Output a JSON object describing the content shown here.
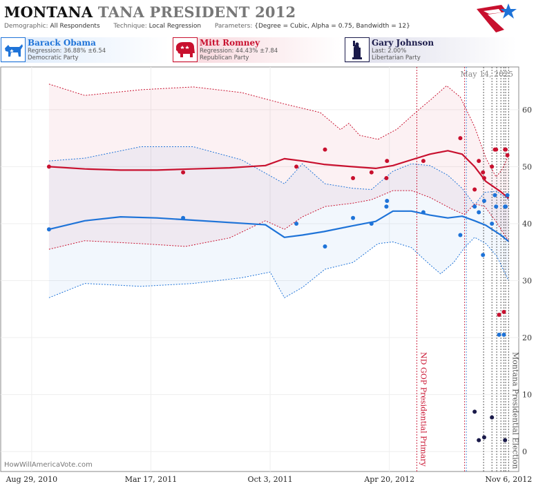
{
  "header": {
    "state": "MONTANA",
    "subtitle": "TANA PRESIDENT 2012",
    "demographic_label": "Demographic:",
    "demographic_value": "All Respondents",
    "technique_label": "Technique:",
    "technique_value": "Local Regression",
    "parameters_label": "Parameters:",
    "parameters_value": "{Degree = Cubic, Alpha = 0.75, Bandwidth = 12}"
  },
  "candidates": [
    {
      "name": "Barack Obama",
      "stat": "Regression: 36.88% ±6.54",
      "party": "Democratic Party",
      "color": "#1e73d8",
      "icon": "donkey-icon"
    },
    {
      "name": "Mitt Romney",
      "stat": "Regression: 44.43% ±7.84",
      "party": "Republican Party",
      "color": "#c8102e",
      "icon": "elephant-icon"
    },
    {
      "name": "Gary Johnson",
      "stat": "Last: 2.00%",
      "party": "Libertarian Party",
      "color": "#1a1a4a",
      "icon": "statue-of-liberty-icon"
    }
  ],
  "credit": "HowWillAmericaVote.com",
  "chart_data": {
    "type": "scatter",
    "date_label": "May 14, 2025",
    "x_tick_labels": [
      "Aug 29, 2010",
      "Mar 17, 2011",
      "Oct 3, 2011",
      "Apr 20, 2012",
      "Nov 6, 2012"
    ],
    "x_tick_dates": [
      "2010-08-29",
      "2011-03-17",
      "2011-10-03",
      "2012-04-20",
      "2012-11-06"
    ],
    "y_ticks": [
      0,
      10,
      20,
      30,
      40,
      50,
      60
    ],
    "xlim": [
      "2010-07-08",
      "2012-11-23"
    ],
    "ylim": [
      -3.5,
      67.5
    ],
    "events": [
      {
        "label": "ND GOP Presidential Primary",
        "date": "2012-06-05",
        "color": "#c8102e"
      },
      {
        "label": "Montana Presidential Election",
        "date": "2012-11-06",
        "color": "#555555"
      }
    ],
    "poll_lines": [
      {
        "date": "2012-08-24",
        "color": "#c8102e"
      },
      {
        "date": "2012-08-27",
        "color": "#1e73d8"
      },
      {
        "date": "2012-09-25",
        "color": "#333333"
      },
      {
        "date": "2012-10-09",
        "color": "#333333"
      },
      {
        "date": "2012-10-17",
        "color": "#333333"
      },
      {
        "date": "2012-10-24",
        "color": "#333333"
      },
      {
        "date": "2012-10-29",
        "color": "#333333"
      },
      {
        "date": "2012-11-01",
        "color": "#333333"
      }
    ],
    "series": [
      {
        "name": "Mitt Romney",
        "color": "#c8102e",
        "points": [
          [
            "2010-09-27",
            50
          ],
          [
            "2011-05-10",
            49
          ],
          [
            "2011-11-16",
            50
          ],
          [
            "2012-01-03",
            53
          ],
          [
            "2012-02-19",
            48
          ],
          [
            "2012-03-21",
            49
          ],
          [
            "2012-04-15",
            48
          ],
          [
            "2012-04-16",
            51
          ],
          [
            "2012-06-16",
            51
          ],
          [
            "2012-08-17",
            55
          ],
          [
            "2012-09-10",
            46
          ],
          [
            "2012-09-17",
            51
          ],
          [
            "2012-09-24",
            49
          ],
          [
            "2012-09-26",
            48
          ],
          [
            "2012-10-09",
            50
          ],
          [
            "2012-10-14",
            53
          ],
          [
            "2012-10-16",
            53
          ],
          [
            "2012-10-21",
            24
          ],
          [
            "2012-10-29",
            24.5
          ],
          [
            "2012-10-31",
            53
          ],
          [
            "2012-11-01",
            53
          ],
          [
            "2012-11-04",
            52
          ]
        ],
        "trend": [
          [
            "2010-09-27",
            50
          ],
          [
            "2010-11-26",
            49.6
          ],
          [
            "2011-01-25",
            49.4
          ],
          [
            "2011-03-27",
            49.4
          ],
          [
            "2011-05-27",
            49.6
          ],
          [
            "2011-07-27",
            49.8
          ],
          [
            "2011-09-25",
            50.2
          ],
          [
            "2011-10-27",
            51.4
          ],
          [
            "2011-11-26",
            51
          ],
          [
            "2012-01-01",
            50.4
          ],
          [
            "2012-02-17",
            50
          ],
          [
            "2012-03-28",
            49.7
          ],
          [
            "2012-04-26",
            50.2
          ],
          [
            "2012-05-27",
            51.2
          ],
          [
            "2012-06-27",
            52.2
          ],
          [
            "2012-07-27",
            52.8
          ],
          [
            "2012-08-20",
            52.2
          ],
          [
            "2012-09-10",
            50
          ],
          [
            "2012-09-29",
            47.4
          ],
          [
            "2012-10-24",
            45.6
          ],
          [
            "2012-11-06",
            44.43
          ]
        ],
        "upper": [
          [
            "2010-09-27",
            64.5
          ],
          [
            "2010-11-26",
            62.5
          ],
          [
            "2011-02-28",
            63.5
          ],
          [
            "2011-05-27",
            64
          ],
          [
            "2011-08-16",
            63
          ],
          [
            "2011-10-27",
            61
          ],
          [
            "2011-12-26",
            59.5
          ],
          [
            "2012-01-29",
            56.5
          ],
          [
            "2012-02-12",
            57.6
          ],
          [
            "2012-03-01",
            55.5
          ],
          [
            "2012-04-01",
            54.8
          ],
          [
            "2012-05-03",
            56.6
          ],
          [
            "2012-06-05",
            59.7
          ],
          [
            "2012-06-29",
            61.8
          ],
          [
            "2012-07-25",
            64.2
          ],
          [
            "2012-08-17",
            62.2
          ],
          [
            "2012-09-10",
            57
          ],
          [
            "2012-09-29",
            51.5
          ],
          [
            "2012-10-16",
            48.2
          ],
          [
            "2012-10-26",
            49.5
          ],
          [
            "2012-11-06",
            52
          ]
        ],
        "lower": [
          [
            "2010-09-27",
            35.5
          ],
          [
            "2010-11-26",
            37
          ],
          [
            "2011-02-28",
            36.5
          ],
          [
            "2011-05-14",
            36
          ],
          [
            "2011-07-27",
            37.5
          ],
          [
            "2011-09-25",
            40.5
          ],
          [
            "2011-10-27",
            39
          ],
          [
            "2011-11-26",
            41.2
          ],
          [
            "2012-01-03",
            43
          ],
          [
            "2012-02-19",
            43.6
          ],
          [
            "2012-03-21",
            44.2
          ],
          [
            "2012-04-26",
            45.8
          ],
          [
            "2012-05-27",
            45.8
          ],
          [
            "2012-06-27",
            44.6
          ],
          [
            "2012-08-02",
            42.6
          ],
          [
            "2012-08-24",
            41.6
          ],
          [
            "2012-09-10",
            43.5
          ],
          [
            "2012-09-27",
            43
          ],
          [
            "2012-10-17",
            40.2
          ],
          [
            "2012-10-29",
            38.2
          ],
          [
            "2012-11-06",
            37
          ]
        ]
      },
      {
        "name": "Barack Obama",
        "color": "#1e73d8",
        "points": [
          [
            "2010-09-27",
            39
          ],
          [
            "2011-05-10",
            41
          ],
          [
            "2011-11-16",
            40
          ],
          [
            "2012-01-03",
            36
          ],
          [
            "2012-02-19",
            41
          ],
          [
            "2012-03-21",
            40
          ],
          [
            "2012-04-15",
            43
          ],
          [
            "2012-04-16",
            44
          ],
          [
            "2012-06-16",
            42
          ],
          [
            "2012-08-17",
            38
          ],
          [
            "2012-09-10",
            43
          ],
          [
            "2012-09-17",
            42
          ],
          [
            "2012-09-24",
            34.5
          ],
          [
            "2012-09-26",
            44
          ],
          [
            "2012-10-09",
            40
          ],
          [
            "2012-10-14",
            45
          ],
          [
            "2012-10-16",
            43
          ],
          [
            "2012-10-21",
            20.5
          ],
          [
            "2012-10-29",
            20.5
          ],
          [
            "2012-10-31",
            43
          ],
          [
            "2012-11-01",
            43
          ],
          [
            "2012-11-04",
            45
          ]
        ],
        "trend": [
          [
            "2010-09-27",
            39
          ],
          [
            "2010-11-26",
            40.5
          ],
          [
            "2011-01-25",
            41.2
          ],
          [
            "2011-03-27",
            41
          ],
          [
            "2011-05-27",
            40.6
          ],
          [
            "2011-07-27",
            40.2
          ],
          [
            "2011-09-25",
            39.8
          ],
          [
            "2011-10-27",
            37.6
          ],
          [
            "2011-11-26",
            38
          ],
          [
            "2012-01-01",
            38.6
          ],
          [
            "2012-02-17",
            39.6
          ],
          [
            "2012-03-28",
            40.4
          ],
          [
            "2012-04-26",
            42.2
          ],
          [
            "2012-05-27",
            42.2
          ],
          [
            "2012-06-27",
            41.5
          ],
          [
            "2012-07-27",
            41
          ],
          [
            "2012-08-20",
            41.3
          ],
          [
            "2012-09-10",
            40.5
          ],
          [
            "2012-09-29",
            39.7
          ],
          [
            "2012-10-24",
            38
          ],
          [
            "2012-11-06",
            36.88
          ]
        ],
        "upper": [
          [
            "2010-09-27",
            51
          ],
          [
            "2010-11-26",
            51.5
          ],
          [
            "2011-02-28",
            53.5
          ],
          [
            "2011-05-27",
            53.5
          ],
          [
            "2011-08-16",
            51.2
          ],
          [
            "2011-10-27",
            47
          ],
          [
            "2011-11-26",
            50.5
          ],
          [
            "2012-01-03",
            47
          ],
          [
            "2012-02-19",
            46.2
          ],
          [
            "2012-03-21",
            46
          ],
          [
            "2012-04-26",
            49.2
          ],
          [
            "2012-05-27",
            50.5
          ],
          [
            "2012-06-27",
            50.2
          ],
          [
            "2012-07-27",
            48.5
          ],
          [
            "2012-08-20",
            46.2
          ],
          [
            "2012-09-10",
            43.3
          ],
          [
            "2012-09-27",
            45.5
          ],
          [
            "2012-10-17",
            45.7
          ],
          [
            "2012-11-06",
            44.2
          ]
        ],
        "lower": [
          [
            "2010-09-27",
            27
          ],
          [
            "2010-11-26",
            29.5
          ],
          [
            "2011-02-28",
            29
          ],
          [
            "2011-05-27",
            29.5
          ],
          [
            "2011-08-16",
            30.5
          ],
          [
            "2011-10-03",
            31.5
          ],
          [
            "2011-10-27",
            27
          ],
          [
            "2011-11-26",
            28.8
          ],
          [
            "2012-01-03",
            32
          ],
          [
            "2012-02-19",
            33.2
          ],
          [
            "2012-04-01",
            36.5
          ],
          [
            "2012-04-26",
            36.8
          ],
          [
            "2012-05-27",
            35.8
          ],
          [
            "2012-06-27",
            32.8
          ],
          [
            "2012-07-15",
            31.2
          ],
          [
            "2012-08-06",
            33.2
          ],
          [
            "2012-08-24",
            35.8
          ],
          [
            "2012-09-10",
            37.6
          ],
          [
            "2012-09-29",
            36.5
          ],
          [
            "2012-10-17",
            34.3
          ],
          [
            "2012-11-06",
            30
          ]
        ]
      },
      {
        "name": "Gary Johnson",
        "color": "#1a1a4a",
        "points": [
          [
            "2012-09-10",
            7
          ],
          [
            "2012-09-17",
            2
          ],
          [
            "2012-09-26",
            2.5
          ],
          [
            "2012-10-09",
            6
          ],
          [
            "2012-10-31",
            2
          ]
        ]
      }
    ]
  }
}
